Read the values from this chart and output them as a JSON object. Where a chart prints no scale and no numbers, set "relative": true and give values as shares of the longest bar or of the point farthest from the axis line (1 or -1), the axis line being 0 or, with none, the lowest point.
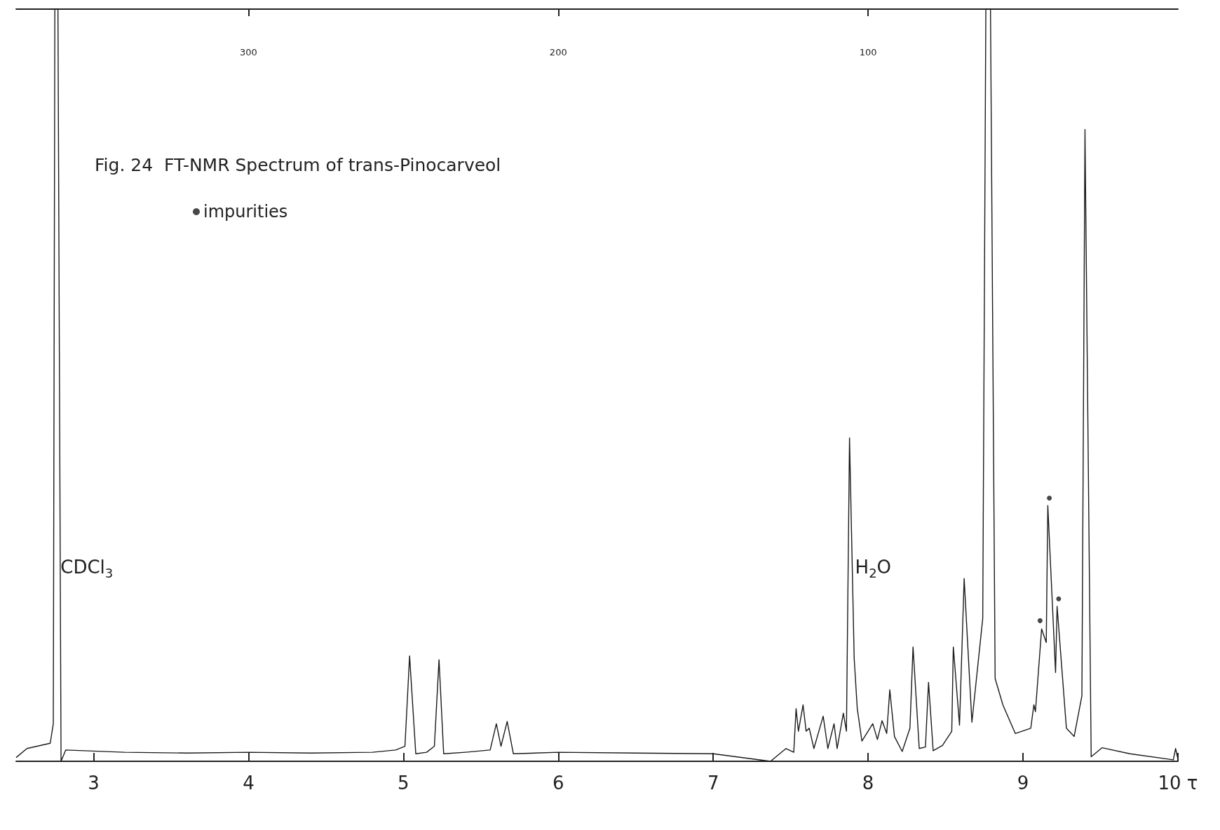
{
  "chart_data": {
    "type": "line",
    "title": "Fig. 24  FT-NMR Spectrum of trans-Pinocarveol",
    "relative": true,
    "xlim": [
      2.5,
      10
    ],
    "xticks": [
      3,
      4,
      5,
      6,
      7,
      8,
      9,
      {
        "value": 10,
        "label": "10 τ"
      }
    ],
    "x2lim": [
      375,
      0
    ],
    "x2ticks": [
      300,
      200,
      100
    ],
    "legend": "top left",
    "grid": false,
    "marker": "none",
    "line_style": "solid",
    "annotations": [
      {
        "text": "CDCl$_{3}$",
        "x": 2.75,
        "y": 0.275
      },
      {
        "text": "H$_{2}$O",
        "x": 7.88,
        "y": 0.275
      }
    ],
    "series": [
      {
        "color": "#1a1a1a",
        "x": [
          2.5,
          2.57,
          2.72,
          2.74,
          2.75,
          2.77,
          2.79,
          2.82,
          3.2,
          3.6,
          4.0,
          4.4,
          4.8,
          4.95,
          5.01,
          5.04,
          5.08,
          5.15,
          5.2,
          5.23,
          5.26,
          5.4,
          5.56,
          5.6,
          5.63,
          5.67,
          5.71,
          6.0,
          6.5,
          7.0,
          7.37,
          7.47,
          7.52,
          7.535,
          7.55,
          7.58,
          7.6,
          7.62,
          7.65,
          7.71,
          7.74,
          7.78,
          7.8,
          7.84,
          7.86,
          7.88,
          7.91,
          7.93,
          7.96,
          8.03,
          8.06,
          8.09,
          8.12,
          8.14,
          8.17,
          8.22,
          8.27,
          8.29,
          8.33,
          8.37,
          8.39,
          8.42,
          8.48,
          8.54,
          8.55,
          8.59,
          8.62,
          8.67,
          8.74,
          8.76,
          8.79,
          8.82,
          8.87,
          8.95,
          9.05,
          9.07,
          9.08,
          9.12,
          9.15,
          9.16,
          9.21,
          9.22,
          9.28,
          9.33,
          9.38,
          9.4,
          9.44,
          9.51,
          9.69,
          9.97,
          9.985,
          10
        ],
        "values": [
          0.005,
          0.017,
          0.024,
          0.05,
          1,
          1,
          0,
          0.015,
          0.012,
          0.011,
          0.012,
          0.011,
          0.012,
          0.015,
          0.02,
          0.14,
          0.01,
          0.012,
          0.02,
          0.135,
          0.01,
          0.012,
          0.015,
          0.05,
          0.02,
          0.053,
          0.01,
          0.012,
          0.011,
          0.01,
          0.0,
          0.017,
          0.012,
          0.07,
          0.04,
          0.075,
          0.04,
          0.044,
          0.017,
          0.06,
          0.017,
          0.05,
          0.017,
          0.064,
          0.04,
          0.43,
          0.137,
          0.07,
          0.027,
          0.05,
          0.029,
          0.054,
          0.037,
          0.095,
          0.033,
          0.013,
          0.044,
          0.152,
          0.017,
          0.019,
          0.105,
          0.014,
          0.021,
          0.04,
          0.152,
          0.048,
          0.243,
          0.052,
          0.19,
          1,
          1,
          0.11,
          0.075,
          0.037,
          0.044,
          0.075,
          0.066,
          0.176,
          0.158,
          0.34,
          0.118,
          0.206,
          0.044,
          0.033,
          0.087,
          0.84,
          0.006,
          0.018,
          0.01,
          0.002,
          0.017,
          0.003
        ]
      },
      {
        "type": "scatter",
        "name": "impurities",
        "color": "#1a1a1a",
        "marker": "circle",
        "x": [
          9.11,
          9.17,
          9.23
        ],
        "values": [
          0.187,
          0.35,
          0.216
        ]
      }
    ]
  }
}
